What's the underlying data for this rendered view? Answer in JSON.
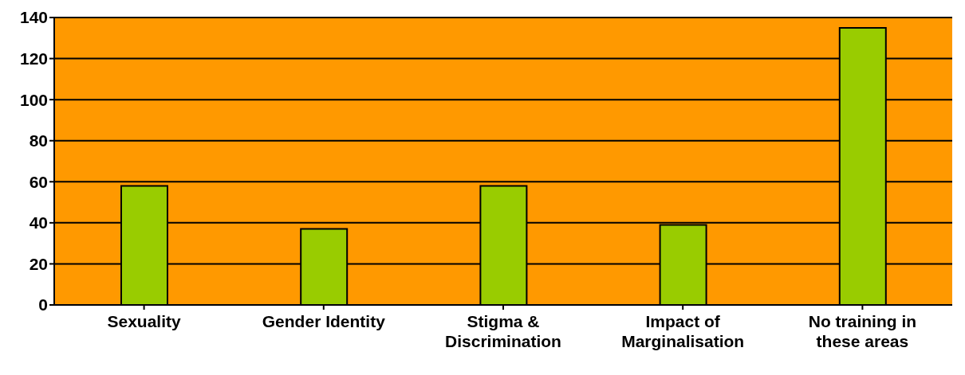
{
  "chart_data": {
    "type": "bar",
    "categories": [
      "Sexuality",
      "Gender Identity",
      "Stigma & Discrimination",
      "Impact of Marginalisation",
      "No training in these areas"
    ],
    "values": [
      58,
      37,
      58,
      39,
      135
    ],
    "color": "#99cc00",
    "ylim": [
      0,
      140
    ],
    "yticks": [
      0,
      20,
      40,
      60,
      80,
      100,
      120,
      140
    ],
    "grid": "y"
  }
}
